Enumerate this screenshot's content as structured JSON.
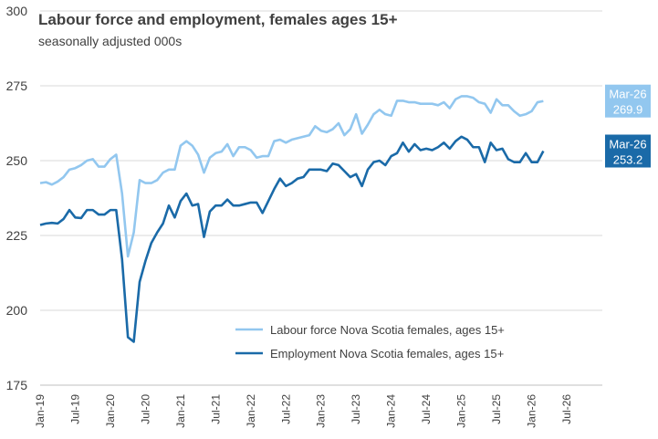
{
  "chart_data": {
    "type": "line",
    "title": "Labour force and employment, females ages 15+",
    "subtitle": "seasonally adjusted 000s",
    "categories": [
      "Jan-19",
      null,
      null,
      null,
      null,
      null,
      "Jul-19",
      null,
      null,
      null,
      null,
      null,
      "Jan-20",
      null,
      null,
      null,
      null,
      null,
      "Jul-20",
      null,
      null,
      null,
      null,
      null,
      "Jan-21",
      null,
      null,
      null,
      null,
      null,
      "Jul-21",
      null,
      null,
      null,
      null,
      null,
      "Jan-22",
      null,
      null,
      null,
      null,
      null,
      "Jul-22",
      null,
      null,
      null,
      null,
      null,
      "Jan-23",
      null,
      null,
      null,
      null,
      null,
      "Jul-23",
      null,
      null,
      null,
      null,
      null,
      "Jan-24",
      null,
      null,
      null,
      null,
      null,
      "Jul-24",
      null,
      null,
      null,
      null,
      null,
      "Jan-25",
      null,
      null,
      null,
      null,
      null,
      "Jul-25",
      null,
      null,
      null,
      null,
      null,
      "Jan-26",
      null,
      null,
      null,
      null,
      null,
      "Jul-26"
    ],
    "series": [
      {
        "name": "Labour force Nova Scotia females, ages 15+",
        "color": "#92c7ef",
        "last_date": "Mar-26",
        "values": [
          242.5,
          242.8,
          242,
          243,
          244.5,
          247,
          247.5,
          248.5,
          250,
          250.5,
          248,
          248,
          250.5,
          252,
          239,
          218,
          226,
          243.5,
          242.5,
          242.5,
          243.5,
          246,
          247,
          247,
          255,
          256.5,
          255,
          252,
          246,
          251,
          252.5,
          253,
          255.5,
          251.5,
          254.5,
          254.5,
          253.5,
          251,
          251.5,
          251.5,
          256.5,
          257,
          256,
          257,
          257.5,
          258,
          258.5,
          261.5,
          260,
          259.5,
          260.5,
          262.5,
          258.5,
          260.5,
          265.5,
          259,
          262,
          265.5,
          267,
          265.5,
          265,
          270,
          270,
          269.5,
          269.5,
          269,
          269,
          269,
          268.5,
          269.5,
          267.5,
          270.5,
          271.5,
          271.5,
          271,
          269.5,
          269,
          266,
          270.5,
          268.5,
          268.5,
          266.5,
          265,
          265.5,
          266.5,
          269.5,
          269.9,
          null,
          null,
          null,
          null
        ]
      },
      {
        "name": "Employment Nova Scotia females, ages 15+",
        "color": "#1a6aa8",
        "last_date": "Mar-26",
        "values": [
          228.5,
          229,
          229.2,
          229,
          230.5,
          233.5,
          231,
          230.8,
          233.5,
          233.5,
          232,
          232,
          233.5,
          233.5,
          217,
          191,
          189.5,
          209.5,
          216.5,
          222.5,
          226,
          229,
          235,
          231,
          236.5,
          239,
          235,
          235.5,
          224.5,
          233,
          235,
          235,
          237,
          235,
          235,
          235.5,
          236,
          236,
          232.5,
          236.5,
          240.5,
          244,
          241.5,
          242.5,
          244,
          244.5,
          247,
          247,
          247,
          246.5,
          249,
          248.5,
          246.5,
          244.5,
          245.5,
          241.5,
          247,
          249.5,
          250,
          248.5,
          251.5,
          252.5,
          256,
          253,
          255.5,
          253.5,
          254,
          253.5,
          254.5,
          256,
          254,
          256.5,
          258,
          257,
          254.5,
          254.5,
          249.5,
          256,
          253.5,
          254,
          250.5,
          249.5,
          249.5,
          252.5,
          249.5,
          249.5,
          253.2,
          null,
          null,
          null,
          null
        ]
      }
    ],
    "ylim": [
      175,
      300
    ],
    "yticks": [
      175,
      200,
      225,
      250,
      275,
      300
    ],
    "grid": true,
    "legend": "lower right"
  }
}
